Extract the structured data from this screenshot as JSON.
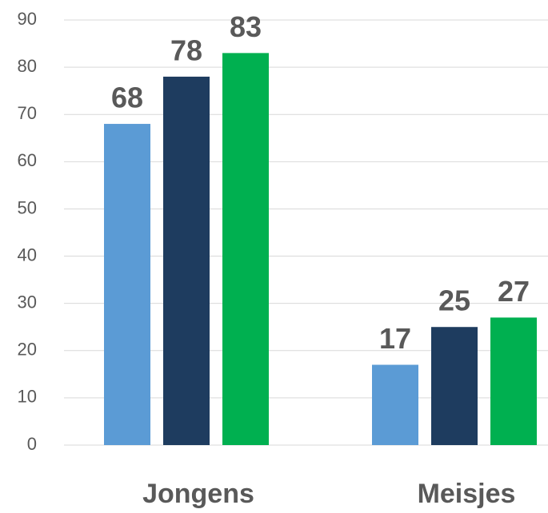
{
  "chart_data": {
    "type": "bar",
    "categories": [
      "Jongens",
      "Meisjes"
    ],
    "series": [
      {
        "color": "#5b9bd5",
        "values": [
          68,
          17
        ]
      },
      {
        "color": "#1e3c5f",
        "values": [
          78,
          25
        ]
      },
      {
        "color": "#00b050",
        "values": [
          83,
          27
        ]
      }
    ],
    "ylim": [
      0,
      90
    ],
    "yticks": [
      0,
      10,
      20,
      30,
      40,
      50,
      60,
      70,
      80,
      90
    ],
    "grid": true
  }
}
